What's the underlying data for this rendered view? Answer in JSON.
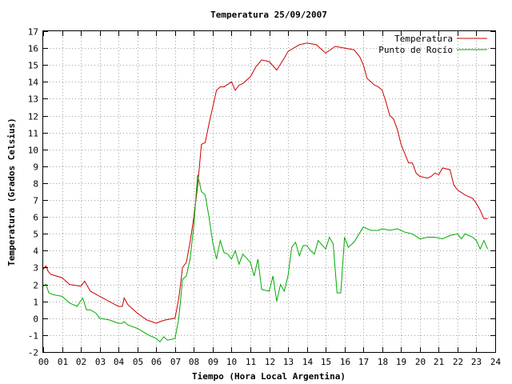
{
  "chart_data": {
    "type": "line",
    "title": "Temperatura 25/09/2007",
    "xlabel": "Tiempo (Hora Local Argentina)",
    "ylabel": "Temperatura (Grados Celsius)",
    "xlim": [
      0,
      24
    ],
    "ylim": [
      -2,
      17
    ],
    "xticks": [
      "00",
      "01",
      "02",
      "03",
      "04",
      "05",
      "06",
      "07",
      "08",
      "09",
      "10",
      "11",
      "12",
      "13",
      "14",
      "15",
      "16",
      "17",
      "18",
      "19",
      "20",
      "21",
      "22",
      "23",
      "24"
    ],
    "yticks": [
      -2,
      -1,
      0,
      1,
      2,
      3,
      4,
      5,
      6,
      7,
      8,
      9,
      10,
      11,
      12,
      13,
      14,
      15,
      16,
      17
    ],
    "grid": true,
    "legend_position": "top-right",
    "series": [
      {
        "name": "Temperatura",
        "color": "#cc0000",
        "x": [
          0.0,
          0.15,
          0.25,
          0.4,
          1.0,
          1.4,
          2.0,
          2.2,
          2.5,
          3.0,
          3.5,
          4.0,
          4.2,
          4.3,
          4.5,
          5.0,
          5.5,
          6.0,
          6.2,
          6.5,
          7.0,
          7.2,
          7.4,
          7.6,
          7.8,
          8.0,
          8.2,
          8.4,
          8.6,
          8.8,
          9.0,
          9.2,
          9.4,
          9.6,
          10.0,
          10.2,
          10.4,
          10.6,
          11.0,
          11.3,
          11.6,
          12.0,
          12.4,
          12.8,
          13.0,
          13.3,
          13.6,
          14.0,
          14.5,
          15.0,
          15.5,
          16.0,
          16.5,
          16.8,
          17.0,
          17.2,
          17.4,
          17.6,
          17.8,
          18.0,
          18.2,
          18.4,
          18.6,
          18.8,
          19.0,
          19.4,
          19.6,
          19.8,
          20.0,
          20.4,
          20.6,
          20.8,
          21.0,
          21.2,
          21.6,
          21.8,
          22.0,
          22.4,
          22.6,
          22.8,
          23.0,
          23.2,
          23.4,
          23.6
        ],
        "values": [
          2.9,
          3.1,
          2.8,
          2.6,
          2.4,
          2.0,
          1.9,
          2.2,
          1.6,
          1.3,
          1.0,
          0.7,
          0.7,
          1.2,
          0.8,
          0.3,
          -0.1,
          -0.3,
          -0.2,
          -0.1,
          0.0,
          1.2,
          3.0,
          3.3,
          4.5,
          6.0,
          7.8,
          10.3,
          10.4,
          11.5,
          12.5,
          13.5,
          13.7,
          13.7,
          14.0,
          13.5,
          13.8,
          13.9,
          14.3,
          14.9,
          15.3,
          15.2,
          14.7,
          15.4,
          15.8,
          16.0,
          16.2,
          16.3,
          16.2,
          15.7,
          16.1,
          16.0,
          15.9,
          15.5,
          15.0,
          14.2,
          14.0,
          13.8,
          13.7,
          13.5,
          12.8,
          12.0,
          11.8,
          11.2,
          10.3,
          9.2,
          9.2,
          8.6,
          8.4,
          8.3,
          8.4,
          8.6,
          8.5,
          8.9,
          8.8,
          7.9,
          7.6,
          7.3,
          7.2,
          7.1,
          6.8,
          6.4,
          5.9,
          5.9
        ]
      },
      {
        "name": "Punto de Rocío",
        "color": "#00aa00",
        "x": [
          0.0,
          0.15,
          0.3,
          0.5,
          1.0,
          1.4,
          1.8,
          2.1,
          2.3,
          2.5,
          2.8,
          3.0,
          3.5,
          4.0,
          4.2,
          4.3,
          4.5,
          5.0,
          5.3,
          5.6,
          6.0,
          6.2,
          6.4,
          6.6,
          7.0,
          7.2,
          7.4,
          7.6,
          7.8,
          8.0,
          8.2,
          8.4,
          8.6,
          8.8,
          9.0,
          9.2,
          9.4,
          9.6,
          9.8,
          10.0,
          10.2,
          10.4,
          10.6,
          11.0,
          11.2,
          11.4,
          11.6,
          12.0,
          12.2,
          12.4,
          12.6,
          12.8,
          13.0,
          13.2,
          13.4,
          13.6,
          13.8,
          14.0,
          14.2,
          14.4,
          14.6,
          15.0,
          15.2,
          15.4,
          15.6,
          15.8,
          16.0,
          16.2,
          16.5,
          17.0,
          17.4,
          17.8,
          18.0,
          18.4,
          18.8,
          19.2,
          19.6,
          20.0,
          20.4,
          20.8,
          21.2,
          21.6,
          22.0,
          22.2,
          22.4,
          22.8,
          23.0,
          23.2,
          23.4,
          23.6
        ],
        "values": [
          1.9,
          2.0,
          1.5,
          1.4,
          1.3,
          0.9,
          0.7,
          1.2,
          0.5,
          0.5,
          0.3,
          0.0,
          -0.1,
          -0.3,
          -0.3,
          -0.2,
          -0.4,
          -0.6,
          -0.8,
          -1.0,
          -1.2,
          -1.4,
          -1.1,
          -1.3,
          -1.2,
          0.0,
          2.3,
          2.5,
          3.5,
          5.5,
          8.5,
          7.5,
          7.3,
          6.0,
          4.5,
          3.5,
          4.6,
          3.9,
          3.8,
          3.5,
          4.0,
          3.2,
          3.8,
          3.3,
          2.5,
          3.5,
          1.7,
          1.6,
          2.5,
          1.0,
          2.0,
          1.6,
          2.5,
          4.2,
          4.5,
          3.7,
          4.3,
          4.3,
          4.0,
          3.8,
          4.6,
          4.1,
          4.8,
          4.4,
          1.5,
          1.5,
          4.8,
          4.2,
          4.5,
          5.4,
          5.2,
          5.2,
          5.3,
          5.2,
          5.3,
          5.1,
          5.0,
          4.7,
          4.8,
          4.8,
          4.7,
          4.9,
          5.0,
          4.7,
          5.0,
          4.8,
          4.6,
          4.1,
          4.6,
          4.1
        ]
      }
    ]
  }
}
